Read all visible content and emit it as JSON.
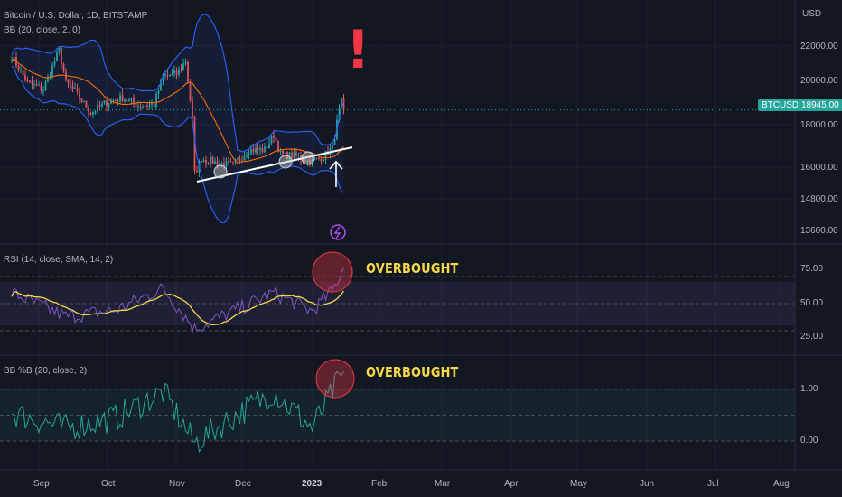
{
  "colors": {
    "background": "#131722",
    "grid": "#1e2230",
    "up": "#26a69a",
    "down": "#ef5350",
    "bb_band": "#2962ff",
    "bb_basis": "#ff6d00",
    "rsi_line": "#7e57c2",
    "rsi_ma": "#f5d94a",
    "pctb_line": "#26a69a",
    "annotation": "#f23645",
    "overbought_text": "#f5d94a"
  },
  "header": {
    "main_title": "Bitcoin / U.S. Dollar, 1D, BITSTAMP",
    "bb_label": "BB (20, close, 2, 0)",
    "rsi_label": "RSI (14, close, SMA, 14, 2)",
    "pctb_label": "BB %B (20, close, 2)"
  },
  "annotations": {
    "exclamation": "!",
    "overbought_rsi": "OVERBOUGHT",
    "overbought_pctb": "OVERBOUGHT",
    "arrow_icon": "arrow-up-icon",
    "bolt_icon": "lightning-icon"
  },
  "price_panel": {
    "currency": "USD",
    "ticker": "BTCUSD",
    "last_price": "18945.00",
    "y_ticks": [
      "22000.00",
      "20000.00",
      "18000.00",
      "16000.00",
      "14800.00",
      "13600.00"
    ]
  },
  "rsi_panel": {
    "y_ticks": [
      "75.00",
      "50.00",
      "25.00"
    ]
  },
  "pctb_panel": {
    "y_ticks": [
      "1.00",
      "0.00"
    ]
  },
  "x_axis": {
    "ticks": [
      "Sep",
      "Oct",
      "Nov",
      "Dec",
      "2023",
      "Feb",
      "Mar",
      "Apr",
      "May",
      "Jun",
      "Jul",
      "Aug"
    ]
  },
  "chart_data": [
    {
      "type": "line",
      "title": "Bitcoin / U.S. Dollar, 1D, BITSTAMP",
      "ylabel": "USD",
      "x_ticks": [
        "Sep",
        "Oct",
        "Nov",
        "Dec",
        "2023",
        "Feb",
        "Mar",
        "Apr",
        "May",
        "Jun",
        "Jul",
        "Aug"
      ],
      "y_ticks": [
        22000,
        20000,
        18000,
        16000,
        14800,
        13600
      ],
      "last_price": 18945,
      "series": [
        {
          "name": "BTCUSD",
          "x": [
            "2022-08-20",
            "2022-08-27",
            "2022-09-03",
            "2022-09-10",
            "2022-09-13",
            "2022-09-17",
            "2022-09-24",
            "2022-10-01",
            "2022-10-08",
            "2022-10-15",
            "2022-10-22",
            "2022-10-26",
            "2022-11-01",
            "2022-11-05",
            "2022-11-08",
            "2022-11-09",
            "2022-11-12",
            "2022-11-19",
            "2022-11-26",
            "2022-12-03",
            "2022-12-10",
            "2022-12-14",
            "2022-12-17",
            "2022-12-24",
            "2022-12-31",
            "2023-01-05",
            "2023-01-09",
            "2023-01-12",
            "2023-01-13",
            "2023-01-14"
          ],
          "values": [
            21400,
            20200,
            19900,
            21700,
            20200,
            19800,
            18800,
            19300,
            19500,
            19150,
            19200,
            20500,
            20600,
            21200,
            18500,
            16000,
            16700,
            16500,
            16400,
            17100,
            17100,
            17800,
            16900,
            16800,
            16550,
            16800,
            17200,
            18900,
            19300,
            18945
          ]
        }
      ]
    },
    {
      "type": "line",
      "title": "RSI (14, close, SMA, 14, 2)",
      "y_ticks": [
        75,
        50,
        25
      ],
      "series": [
        {
          "name": "RSI",
          "x": [
            "2022-08-20",
            "2022-09-13",
            "2022-10-05",
            "2022-10-26",
            "2022-11-09",
            "2022-11-22",
            "2022-12-14",
            "2022-12-31",
            "2023-01-09",
            "2023-01-14"
          ],
          "values": [
            60,
            38,
            44,
            64,
            27,
            39,
            60,
            43,
            62,
            83
          ]
        }
      ]
    },
    {
      "type": "line",
      "title": "BB %B (20, close, 2)",
      "y_ticks": [
        1.0,
        0.0
      ],
      "series": [
        {
          "name": "BB %B",
          "x": [
            "2022-08-20",
            "2022-09-13",
            "2022-10-05",
            "2022-10-26",
            "2022-11-09",
            "2022-11-22",
            "2022-12-14",
            "2022-12-31",
            "2023-01-09",
            "2023-01-14"
          ],
          "values": [
            0.55,
            0.25,
            0.45,
            0.95,
            -0.05,
            0.35,
            0.95,
            0.25,
            0.95,
            1.35
          ]
        }
      ]
    }
  ]
}
